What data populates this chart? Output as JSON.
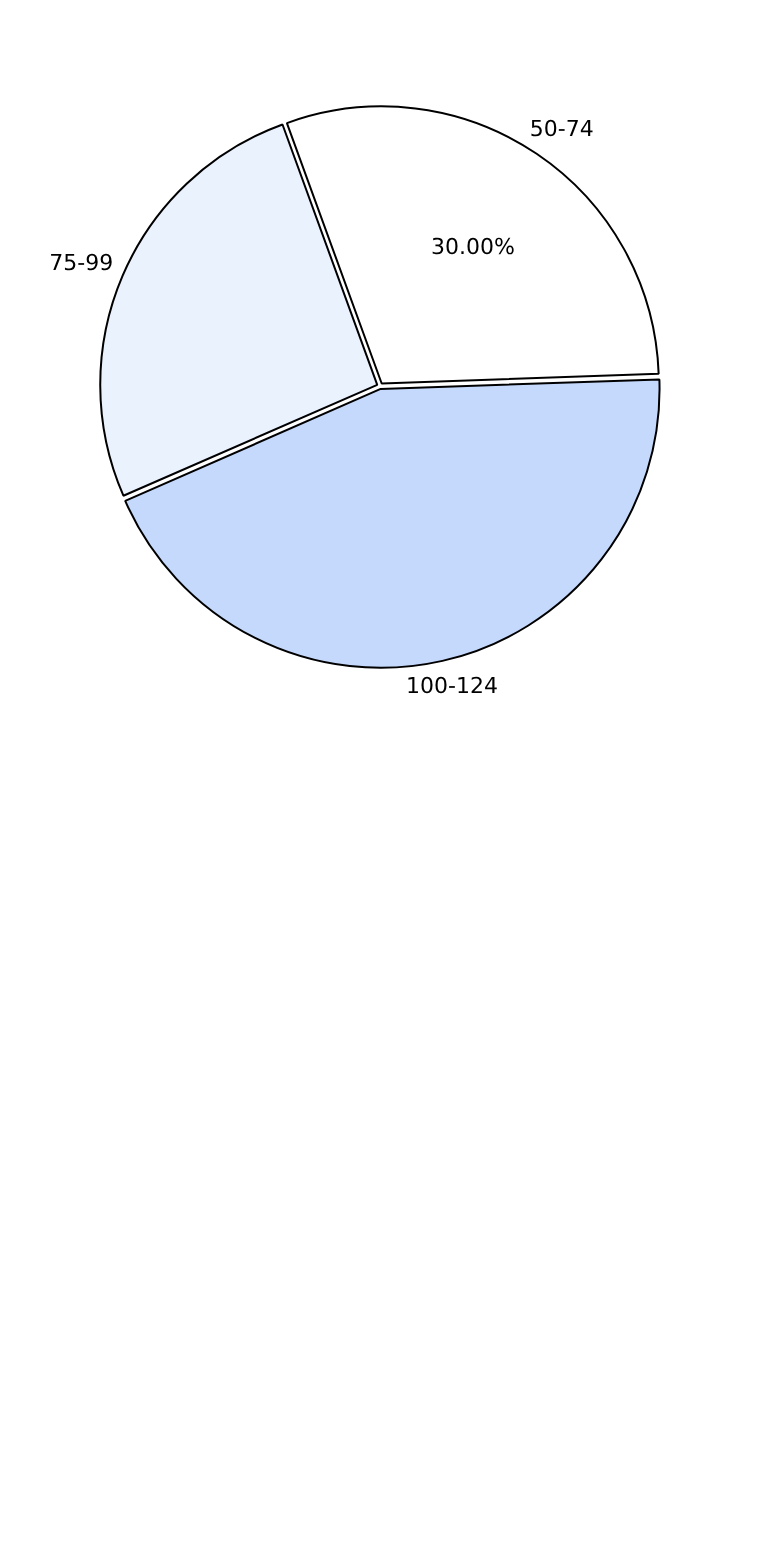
{
  "chart_data": {
    "type": "pie",
    "categories": [
      "50-74",
      "100-124",
      "75-99"
    ],
    "values": [
      30,
      44,
      26
    ],
    "colors": [
      "#ffffff",
      "#c5d9fd",
      "#eaf2fe"
    ],
    "value_labels": [
      "30.00%",
      null,
      null
    ],
    "legend": false
  }
}
